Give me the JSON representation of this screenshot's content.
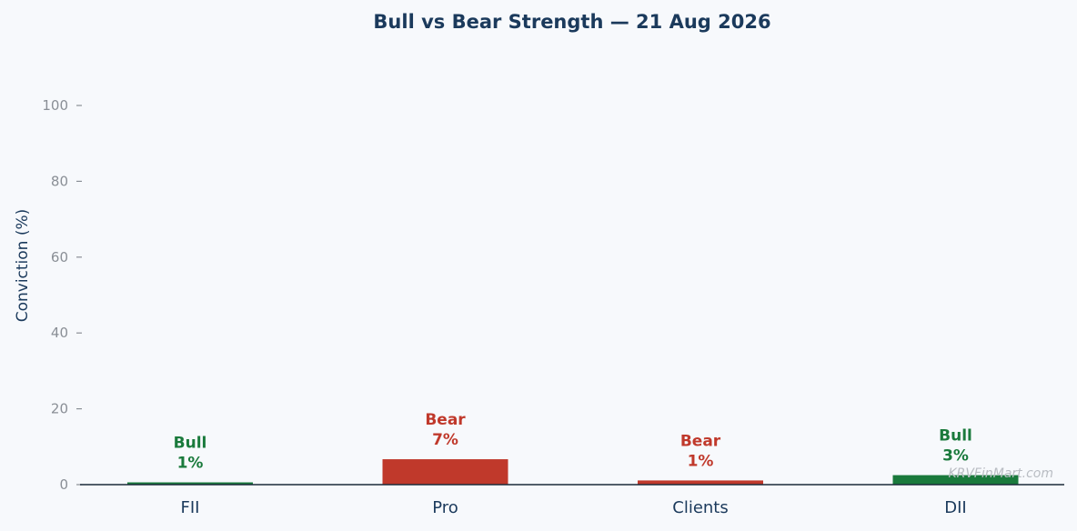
{
  "chart_data": {
    "type": "bar",
    "title": "Bull vs Bear Strength — 21 Aug 2026",
    "xlabel": "",
    "ylabel": "Conviction (%)",
    "ylim": [
      0,
      110
    ],
    "yticks": [
      0,
      20,
      40,
      60,
      80,
      100
    ],
    "grid": false,
    "categories": [
      "FII",
      "Pro",
      "Clients",
      "DII"
    ],
    "values": [
      0.6,
      6.7,
      1.1,
      2.5
    ],
    "labels": [
      {
        "stance": "Bull",
        "pct": "1%"
      },
      {
        "stance": "Bear",
        "pct": "7%"
      },
      {
        "stance": "Bear",
        "pct": "1%"
      },
      {
        "stance": "Bull",
        "pct": "3%"
      }
    ],
    "colors": {
      "Bull": "#1a7a3c",
      "Bear": "#c0392b"
    },
    "watermark": "KRVFinMart.com"
  }
}
